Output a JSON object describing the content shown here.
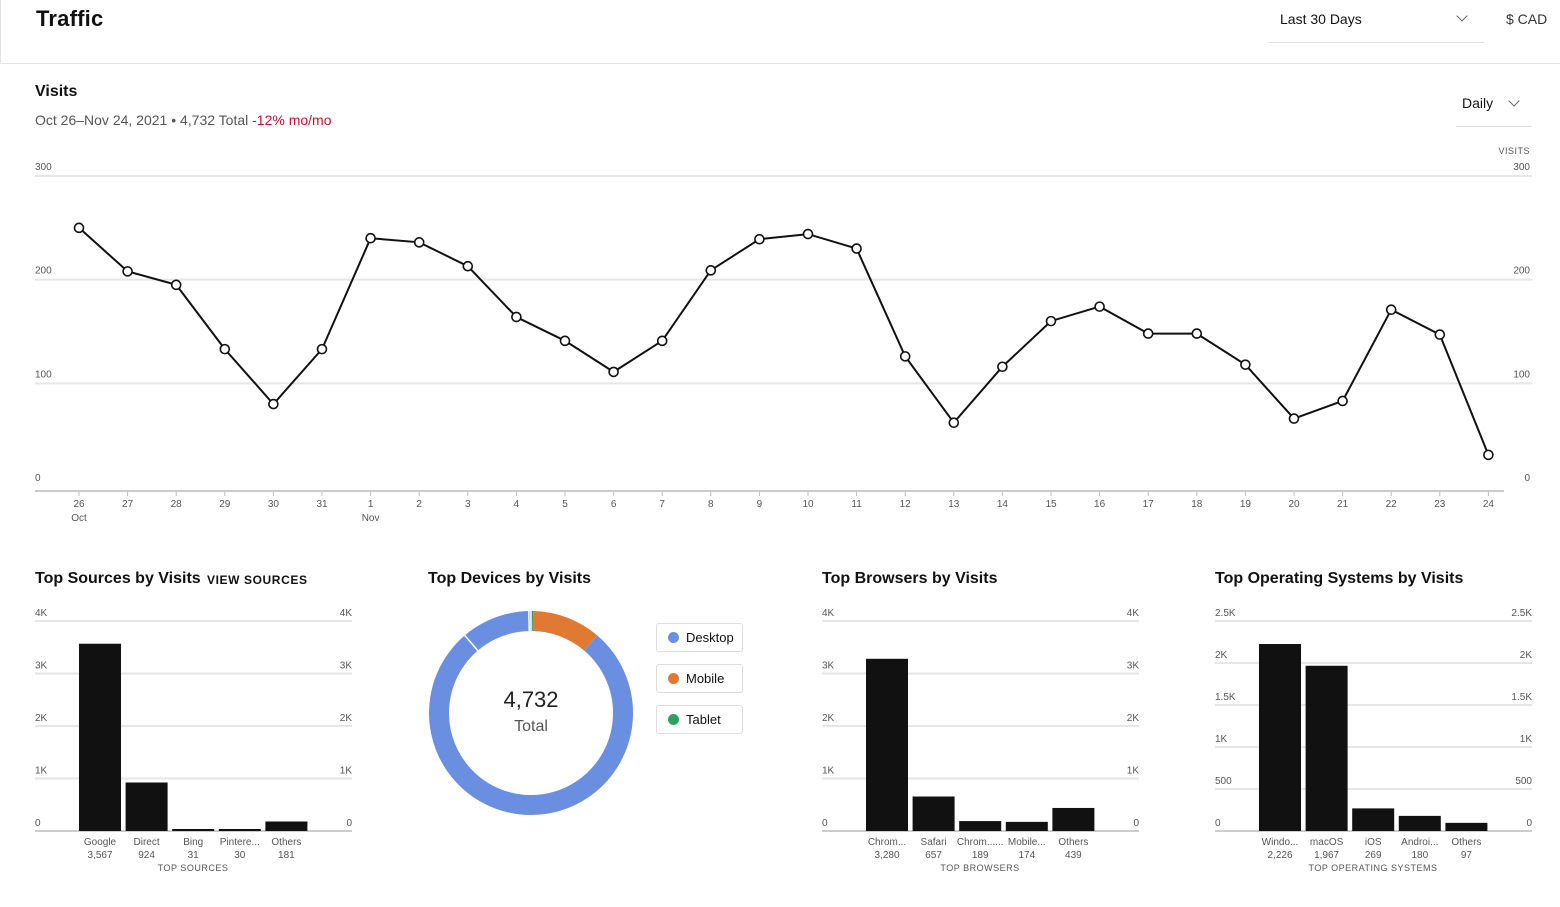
{
  "header": {
    "title": "Traffic",
    "range": "Last 30 Days",
    "currency": "$ CAD"
  },
  "visits": {
    "title": "Visits",
    "date_range": "Oct 26–Nov 24, 2021",
    "total_text": "4,732 Total",
    "change": "-12% mo/mo",
    "period": "Daily"
  },
  "sources": {
    "title": "Top Sources by Visits",
    "link": "VIEW SOURCES"
  },
  "devices": {
    "title": "Top Devices by Visits",
    "total": "4,732",
    "total_label": "Total",
    "legend": [
      {
        "label": "Desktop",
        "color": "#6b8fe0"
      },
      {
        "label": "Mobile",
        "color": "#e07a33"
      },
      {
        "label": "Tablet",
        "color": "#2ea063"
      }
    ]
  },
  "browsers": {
    "title": "Top Browsers by Visits"
  },
  "os": {
    "title": "Top Operating Systems by Visits"
  },
  "chart_data": [
    {
      "type": "line",
      "x": [
        "26",
        "27",
        "28",
        "29",
        "30",
        "31",
        "1",
        "2",
        "3",
        "4",
        "5",
        "6",
        "7",
        "8",
        "9",
        "10",
        "11",
        "12",
        "13",
        "14",
        "15",
        "16",
        "17",
        "18",
        "19",
        "20",
        "21",
        "22",
        "23",
        "24"
      ],
      "month_labels": [
        {
          "index": 0,
          "label": "Oct"
        },
        {
          "index": 6,
          "label": "Nov"
        }
      ],
      "series": [
        {
          "values": [
            250,
            208,
            195,
            133,
            80,
            133,
            240,
            236,
            213,
            164,
            141,
            111,
            141,
            209,
            239,
            244,
            230,
            126,
            62,
            116,
            160,
            174,
            148,
            148,
            118,
            66,
            83,
            171,
            147,
            31
          ]
        }
      ],
      "ylim": [
        0,
        300
      ],
      "yticks": [
        0,
        100,
        200,
        300
      ],
      "right_axis_label": "VISITS",
      "grid": true
    },
    {
      "type": "bar",
      "categories": [
        "Google",
        "Direct",
        "Bing",
        "Pintere...",
        "Others"
      ],
      "value_labels": [
        "3,567",
        "924",
        "31",
        "30",
        "181"
      ],
      "values": [
        3567,
        924,
        31,
        30,
        181
      ],
      "ylim": [
        0,
        4000
      ],
      "yticks": [
        0,
        1000,
        2000,
        3000,
        4000
      ],
      "ytick_labels": [
        "0",
        "1K",
        "2K",
        "3K",
        "4K"
      ],
      "xlabel": "TOP SOURCES"
    },
    {
      "type": "pie",
      "categories": [
        "Desktop",
        "Mobile",
        "Tablet"
      ],
      "values": [
        4200,
        516,
        16
      ]
    },
    {
      "type": "bar",
      "categories": [
        "Chrom...",
        "Safari",
        "Chrom......",
        "Mobile...",
        "Others"
      ],
      "value_labels": [
        "3,280",
        "657",
        "189",
        "174",
        "439"
      ],
      "values": [
        3280,
        657,
        189,
        174,
        439
      ],
      "ylim": [
        0,
        4000
      ],
      "yticks": [
        0,
        1000,
        2000,
        3000,
        4000
      ],
      "ytick_labels": [
        "0",
        "1K",
        "2K",
        "3K",
        "4K"
      ],
      "xlabel": "TOP BROWSERS"
    },
    {
      "type": "bar",
      "categories": [
        "Windo...",
        "macOS",
        "iOS",
        "Androi...",
        "Others"
      ],
      "value_labels": [
        "2,226",
        "1,967",
        "269",
        "180",
        "97"
      ],
      "values": [
        2226,
        1967,
        269,
        180,
        97
      ],
      "ylim": [
        0,
        2500
      ],
      "yticks": [
        0,
        500,
        1000,
        1500,
        2000,
        2500
      ],
      "ytick_labels": [
        "0",
        "500",
        "1K",
        "1.5K",
        "2K",
        "2.5K"
      ],
      "xlabel": "TOP OPERATING SYSTEMS"
    }
  ]
}
